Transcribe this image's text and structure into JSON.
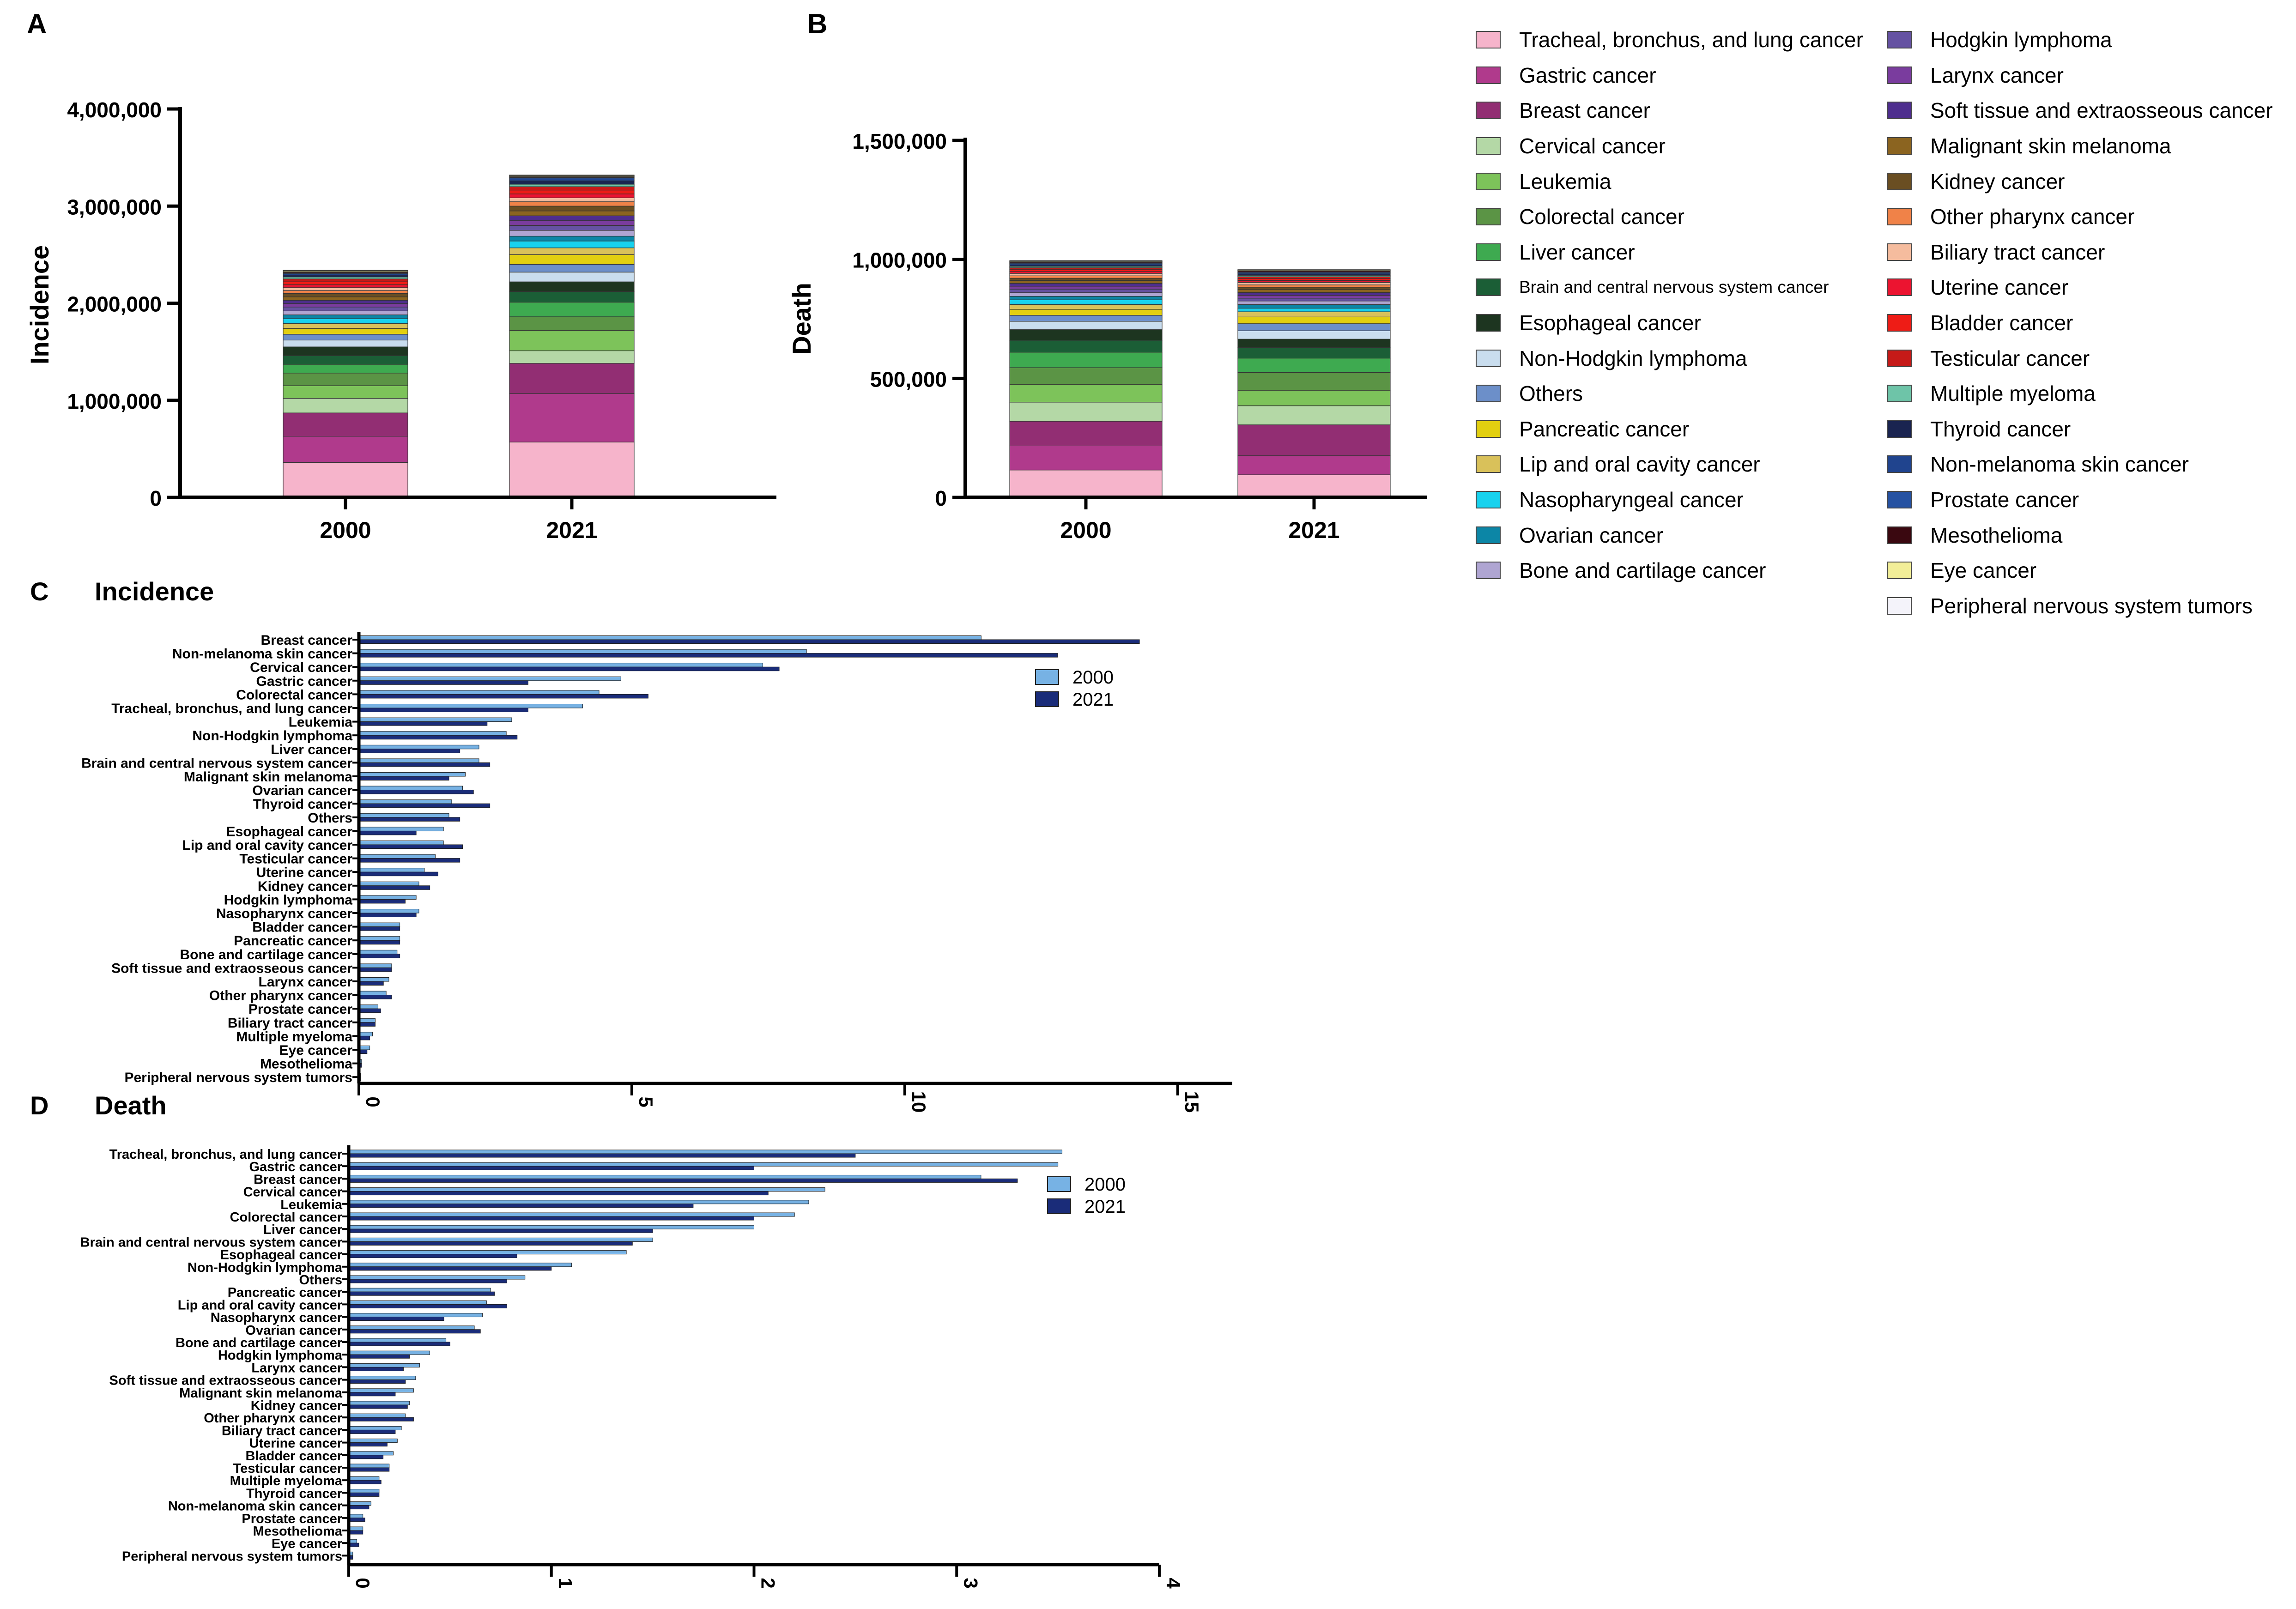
{
  "panels": {
    "A": {
      "letter": "A",
      "ylabel": "Incidence"
    },
    "B": {
      "letter": "B",
      "ylabel": "Death"
    },
    "C": {
      "letter": "C",
      "title": "Incidence"
    },
    "D": {
      "letter": "D",
      "title": "Death"
    }
  },
  "legend": {
    "col1": [
      {
        "label": "Tracheal, bronchus, and lung cancer",
        "color": "#F6B4CB"
      },
      {
        "label": "Gastric cancer",
        "color": "#B03A8C"
      },
      {
        "label": "Breast cancer",
        "color": "#922E73"
      },
      {
        "label": "Cervical cancer",
        "color": "#B4D8A6"
      },
      {
        "label": "Leukemia",
        "color": "#7DC35A"
      },
      {
        "label": "Colorectal cancer",
        "color": "#5B9445"
      },
      {
        "label": "Liver cancer",
        "color": "#3EAA50"
      },
      {
        "label": "Brain and central nervous system cancer",
        "color": "#1B5E36",
        "small": true
      },
      {
        "label": "Esophageal cancer",
        "color": "#1D3520"
      },
      {
        "label": "Non-Hodgkin lymphoma",
        "color": "#C9DDEE"
      },
      {
        "label": "Others",
        "color": "#6C8FC9"
      },
      {
        "label": "Pancreatic cancer",
        "color": "#E2CF10"
      },
      {
        "label": "Lip and oral cavity cancer",
        "color": "#D9C15A"
      },
      {
        "label": "Nasopharyngeal cancer",
        "color": "#18D2EE"
      },
      {
        "label": "Ovarian cancer",
        "color": "#0C86A6"
      },
      {
        "label": "Bone and cartilage cancer",
        "color": "#AFA5D2"
      }
    ],
    "col2": [
      {
        "label": "Hodgkin lymphoma",
        "color": "#6552A2"
      },
      {
        "label": "Larynx cancer",
        "color": "#7A3C9E"
      },
      {
        "label": "Soft tissue and extraosseous cancer",
        "color": "#4E2E8E"
      },
      {
        "label": "Malignant skin melanoma",
        "color": "#8B6420"
      },
      {
        "label": "Kidney cancer",
        "color": "#6A4E22"
      },
      {
        "label": "Other pharynx cancer",
        "color": "#F08248"
      },
      {
        "label": "Biliary tract cancer",
        "color": "#F5BC9E"
      },
      {
        "label": "Uterine cancer",
        "color": "#EC1430"
      },
      {
        "label": "Bladder cancer",
        "color": "#EE1C16"
      },
      {
        "label": "Testicular cancer",
        "color": "#C61A18"
      },
      {
        "label": "Multiple myeloma",
        "color": "#6EC4A8"
      },
      {
        "label": "Thyroid cancer",
        "color": "#1A2450"
      },
      {
        "label": "Non-melanoma skin cancer",
        "color": "#20448E"
      },
      {
        "label": "Prostate cancer",
        "color": "#2652A2"
      },
      {
        "label": "Mesothelioma",
        "color": "#3A0810"
      },
      {
        "label": "Eye cancer",
        "color": "#F2EE98"
      },
      {
        "label": "Peripheral nervous system tumors",
        "color": "#F4F3FA"
      }
    ]
  },
  "chart_data": [
    {
      "id": "A",
      "type": "stacked-bar",
      "ylabel": "Incidence",
      "categories": [
        "2000",
        "2021"
      ],
      "ylim": [
        0,
        4000000
      ],
      "yticks": [
        0,
        1000000,
        2000000,
        3000000,
        4000000
      ],
      "ytick_labels": [
        "0",
        "1,000,000",
        "2,000,000",
        "3,000,000",
        "4,000,000"
      ],
      "series": [
        {
          "name": "Tracheal, bronchus, and lung cancer",
          "values": [
            360000,
            570000
          ]
        },
        {
          "name": "Gastric cancer",
          "values": [
            270000,
            500000
          ]
        },
        {
          "name": "Breast cancer",
          "values": [
            240000,
            310000
          ]
        },
        {
          "name": "Cervical cancer",
          "values": [
            150000,
            130000
          ]
        },
        {
          "name": "Leukemia",
          "values": [
            130000,
            210000
          ]
        },
        {
          "name": "Colorectal cancer",
          "values": [
            130000,
            140000
          ]
        },
        {
          "name": "Liver cancer",
          "values": [
            90000,
            150000
          ]
        },
        {
          "name": "Brain and central nervous system cancer",
          "values": [
            90000,
            110000
          ]
        },
        {
          "name": "Esophageal cancer",
          "values": [
            90000,
            100000
          ]
        },
        {
          "name": "Non-Hodgkin lymphoma",
          "values": [
            70000,
            100000
          ]
        },
        {
          "name": "Others",
          "values": [
            60000,
            80000
          ]
        },
        {
          "name": "Pancreatic cancer",
          "values": [
            60000,
            100000
          ]
        },
        {
          "name": "Lip and oral cavity cancer",
          "values": [
            50000,
            70000
          ]
        },
        {
          "name": "Nasopharyngeal cancer",
          "values": [
            50000,
            70000
          ]
        },
        {
          "name": "Ovarian cancer",
          "values": [
            40000,
            50000
          ]
        },
        {
          "name": "Bone and cartilage cancer",
          "values": [
            40000,
            60000
          ]
        },
        {
          "name": "Hodgkin lymphoma",
          "values": [
            40000,
            50000
          ]
        },
        {
          "name": "Larynx cancer",
          "values": [
            35000,
            50000
          ]
        },
        {
          "name": "Soft tissue and extraosseous cancer",
          "values": [
            35000,
            50000
          ]
        },
        {
          "name": "Malignant skin melanoma",
          "values": [
            35000,
            50000
          ]
        },
        {
          "name": "Kidney cancer",
          "values": [
            35000,
            50000
          ]
        },
        {
          "name": "Other pharynx cancer",
          "values": [
            30000,
            45000
          ]
        },
        {
          "name": "Biliary tract cancer",
          "values": [
            30000,
            40000
          ]
        },
        {
          "name": "Uterine cancer",
          "values": [
            30000,
            40000
          ]
        },
        {
          "name": "Bladder cancer",
          "values": [
            30000,
            40000
          ]
        },
        {
          "name": "Testicular cancer",
          "values": [
            30000,
            35000
          ]
        },
        {
          "name": "Multiple myeloma",
          "values": [
            20000,
            25000
          ]
        },
        {
          "name": "Thyroid cancer",
          "values": [
            20000,
            35000
          ]
        },
        {
          "name": "Non-melanoma skin cancer",
          "values": [
            15000,
            20000
          ]
        },
        {
          "name": "Prostate cancer",
          "values": [
            10000,
            15000
          ]
        },
        {
          "name": "Mesothelioma",
          "values": [
            10000,
            10000
          ]
        },
        {
          "name": "Eye cancer",
          "values": [
            10000,
            10000
          ]
        },
        {
          "name": "Peripheral nervous system tumors",
          "values": [
            5000,
            5000
          ]
        }
      ]
    },
    {
      "id": "B",
      "type": "stacked-bar",
      "ylabel": "Death",
      "categories": [
        "2000",
        "2021"
      ],
      "ylim": [
        0,
        1500000
      ],
      "yticks": [
        0,
        500000,
        1000000,
        1500000
      ],
      "ytick_labels": [
        "0",
        "500,000",
        "1,000,000",
        "1,500,000"
      ],
      "series": [
        {
          "name": "Tracheal, bronchus, and lung cancer",
          "values": [
            115000,
            95000
          ]
        },
        {
          "name": "Gastric cancer",
          "values": [
            105000,
            80000
          ]
        },
        {
          "name": "Breast cancer",
          "values": [
            100000,
            130000
          ]
        },
        {
          "name": "Cervical cancer",
          "values": [
            80000,
            80000
          ]
        },
        {
          "name": "Leukemia",
          "values": [
            75000,
            65000
          ]
        },
        {
          "name": "Colorectal cancer",
          "values": [
            70000,
            75000
          ]
        },
        {
          "name": "Liver cancer",
          "values": [
            65000,
            60000
          ]
        },
        {
          "name": "Brain and central nervous system cancer",
          "values": [
            50000,
            45000
          ]
        },
        {
          "name": "Esophageal cancer",
          "values": [
            45000,
            35000
          ]
        },
        {
          "name": "Non-Hodgkin lymphoma",
          "values": [
            35000,
            35000
          ]
        },
        {
          "name": "Others",
          "values": [
            25000,
            30000
          ]
        },
        {
          "name": "Pancreatic cancer",
          "values": [
            25000,
            28000
          ]
        },
        {
          "name": "Lip and oral cavity cancer",
          "values": [
            20000,
            22000
          ]
        },
        {
          "name": "Nasopharyngeal cancer",
          "values": [
            20000,
            15000
          ]
        },
        {
          "name": "Ovarian cancer",
          "values": [
            15000,
            15000
          ]
        },
        {
          "name": "Bone and cartilage cancer",
          "values": [
            15000,
            15000
          ]
        },
        {
          "name": "Hodgkin lymphoma",
          "values": [
            15000,
            12000
          ]
        },
        {
          "name": "Larynx cancer",
          "values": [
            12000,
            12000
          ]
        },
        {
          "name": "Soft tissue and extraosseous cancer",
          "values": [
            12000,
            12000
          ]
        },
        {
          "name": "Malignant skin melanoma",
          "values": [
            12000,
            12000
          ]
        },
        {
          "name": "Kidney cancer",
          "values": [
            10000,
            10000
          ]
        },
        {
          "name": "Other pharynx cancer",
          "values": [
            10000,
            10000
          ]
        },
        {
          "name": "Biliary tract cancer",
          "values": [
            10000,
            10000
          ]
        },
        {
          "name": "Uterine cancer",
          "values": [
            8000,
            8000
          ]
        },
        {
          "name": "Bladder cancer",
          "values": [
            8000,
            8000
          ]
        },
        {
          "name": "Testicular cancer",
          "values": [
            8000,
            8000
          ]
        },
        {
          "name": "Multiple myeloma",
          "values": [
            6000,
            6000
          ]
        },
        {
          "name": "Thyroid cancer",
          "values": [
            6000,
            6000
          ]
        },
        {
          "name": "Non-melanoma skin cancer",
          "values": [
            5000,
            5000
          ]
        },
        {
          "name": "Prostate cancer",
          "values": [
            4000,
            4000
          ]
        },
        {
          "name": "Mesothelioma",
          "values": [
            4000,
            4000
          ]
        },
        {
          "name": "Eye cancer",
          "values": [
            3000,
            3000
          ]
        },
        {
          "name": "Peripheral nervous system tumors",
          "values": [
            2000,
            2000
          ]
        }
      ]
    },
    {
      "id": "C",
      "type": "bar",
      "orientation": "horizontal",
      "title": "Incidence",
      "xlim": [
        0,
        16
      ],
      "xticks": [
        0,
        5,
        10,
        15
      ],
      "legend": [
        "2000",
        "2021"
      ],
      "legend_colors": [
        "#77B2E4",
        "#1A2C79"
      ],
      "categories": [
        "Breast cancer",
        "Non-melanoma skin cancer",
        "Cervical cancer",
        "Gastric cancer",
        "Colorectal cancer",
        "Tracheal, bronchus, and lung cancer",
        "Leukemia",
        "Non-Hodgkin lymphoma",
        "Liver cancer",
        "Brain and central nervous system cancer",
        "Malignant skin melanoma",
        "Ovarian cancer",
        "Thyroid cancer",
        "Others",
        "Esophageal cancer",
        "Lip and oral cavity cancer",
        "Testicular cancer",
        "Uterine cancer",
        "Kidney cancer",
        "Hodgkin lymphoma",
        "Nasopharynx cancer",
        "Bladder cancer",
        "Pancreatic cancer",
        "Bone and cartilage cancer",
        "Soft tissue and extraosseous cancer",
        "Larynx cancer",
        "Other pharynx cancer",
        "Prostate cancer",
        "Biliary tract cancer",
        "Multiple myeloma",
        "Eye cancer",
        "Mesothelioma",
        "Peripheral nervous system tumors"
      ],
      "series": [
        {
          "name": "2000",
          "values": [
            11.4,
            8.2,
            7.4,
            4.8,
            4.4,
            4.1,
            2.8,
            2.7,
            2.2,
            2.2,
            1.95,
            1.9,
            1.7,
            1.65,
            1.55,
            1.55,
            1.4,
            1.2,
            1.1,
            1.05,
            1.1,
            0.75,
            0.75,
            0.7,
            0.6,
            0.55,
            0.5,
            0.35,
            0.3,
            0.25,
            0.2,
            0.05,
            0.03
          ]
        },
        {
          "name": "2021",
          "values": [
            14.3,
            12.8,
            7.7,
            3.1,
            5.3,
            3.1,
            2.35,
            2.9,
            1.85,
            2.4,
            1.65,
            2.1,
            2.4,
            1.85,
            1.05,
            1.9,
            1.85,
            1.45,
            1.3,
            0.85,
            1.05,
            0.75,
            0.75,
            0.75,
            0.6,
            0.45,
            0.6,
            0.4,
            0.3,
            0.2,
            0.15,
            0.05,
            0.03
          ]
        }
      ]
    },
    {
      "id": "D",
      "type": "bar",
      "orientation": "horizontal",
      "title": "Death",
      "xlim": [
        0,
        4
      ],
      "xticks": [
        0,
        1,
        2,
        3,
        4
      ],
      "legend": [
        "2000",
        "2021"
      ],
      "legend_colors": [
        "#77B2E4",
        "#1A2C79"
      ],
      "categories": [
        "Tracheal, bronchus, and lung cancer",
        "Gastric cancer",
        "Breast cancer",
        "Cervical cancer",
        "Leukemia",
        "Colorectal cancer",
        "Liver cancer",
        "Brain and central nervous system cancer",
        "Esophageal cancer",
        "Non-Hodgkin lymphoma",
        "Others",
        "Pancreatic cancer",
        "Lip and oral cavity cancer",
        "Nasopharynx cancer",
        "Ovarian cancer",
        "Bone and cartilage cancer",
        "Hodgkin lymphoma",
        "Larynx cancer",
        "Soft tissue and extraosseous cancer",
        "Malignant skin melanoma",
        "Kidney cancer",
        "Other pharynx cancer",
        "Biliary tract cancer",
        "Uterine cancer",
        "Bladder cancer",
        "Testicular cancer",
        "Multiple myeloma",
        "Thyroid cancer",
        "Non-melanoma skin cancer",
        "Prostate cancer",
        "Mesothelioma",
        "Eye cancer",
        "Peripheral nervous system tumors"
      ],
      "series": [
        {
          "name": "2000",
          "values": [
            3.52,
            3.5,
            3.12,
            2.35,
            2.27,
            2.2,
            2.0,
            1.5,
            1.37,
            1.1,
            0.87,
            0.7,
            0.68,
            0.66,
            0.62,
            0.48,
            0.4,
            0.35,
            0.33,
            0.32,
            0.3,
            0.28,
            0.26,
            0.24,
            0.22,
            0.2,
            0.15,
            0.15,
            0.11,
            0.07,
            0.07,
            0.04,
            0.02
          ]
        },
        {
          "name": "2021",
          "values": [
            2.5,
            2.0,
            3.3,
            2.07,
            1.7,
            2.0,
            1.5,
            1.4,
            0.83,
            1.0,
            0.78,
            0.72,
            0.78,
            0.47,
            0.65,
            0.5,
            0.3,
            0.27,
            0.28,
            0.23,
            0.29,
            0.32,
            0.23,
            0.19,
            0.17,
            0.2,
            0.16,
            0.15,
            0.1,
            0.08,
            0.07,
            0.05,
            0.02
          ]
        }
      ]
    }
  ]
}
